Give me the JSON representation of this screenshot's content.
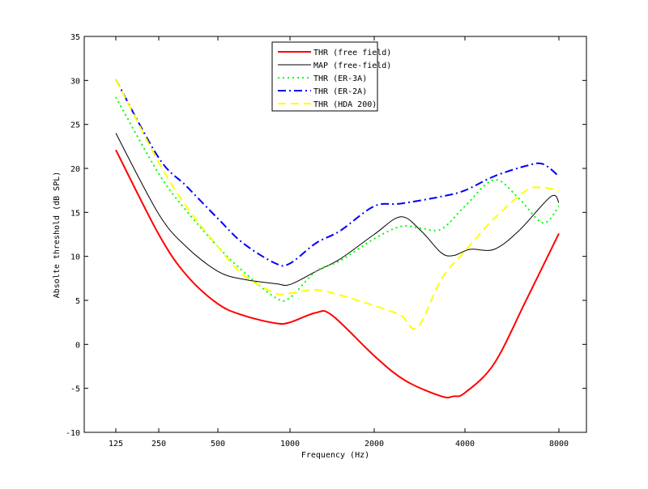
{
  "chart_data": {
    "type": "line",
    "title": "",
    "xlabel": "Frequency (Hz)",
    "ylabel": "Absolte threshold (dB SPL)",
    "xticks": [
      125,
      250,
      500,
      1000,
      2000,
      4000,
      8000
    ],
    "yticks": [
      -10,
      -5,
      0,
      5,
      10,
      15,
      20,
      25,
      30,
      35
    ],
    "ylim": [
      -10,
      35
    ],
    "grid": false,
    "legend_position": "top-center",
    "series": [
      {
        "name": "THR (free field)",
        "color": "#ff0000",
        "style": "solid",
        "width": 2,
        "x": [
          125,
          250,
          345,
          500,
          637,
          871,
          1000,
          1238,
          1414,
          2000,
          2530,
          3340,
          3670,
          4000,
          4960,
          6300,
          8000
        ],
        "y": [
          22.1,
          12.5,
          7.9,
          4.6,
          3.3,
          2.4,
          2.5,
          3.6,
          3.3,
          -1.3,
          -4.1,
          -5.9,
          -5.9,
          -5.5,
          -2.2,
          5.1,
          12.6
        ]
      },
      {
        "name": "MAP (free-field)",
        "color": "#000000",
        "style": "solid",
        "width": 1,
        "x": [
          125,
          250,
          345,
          500,
          637,
          871,
          1000,
          1238,
          1510,
          2000,
          2450,
          2860,
          3340,
          3670,
          4150,
          4960,
          5950,
          7540,
          8000
        ],
        "y": [
          24.0,
          14.8,
          11.1,
          8.3,
          7.4,
          6.9,
          6.8,
          8.3,
          9.7,
          12.5,
          14.5,
          12.9,
          10.4,
          10.1,
          10.8,
          10.8,
          12.9,
          16.8,
          16.1
        ]
      },
      {
        "name": "THR (ER-3A)",
        "color": "#00ff00",
        "style": "dotted",
        "width": 2,
        "x": [
          125,
          250,
          345,
          500,
          637,
          871,
          1000,
          1238,
          1510,
          2000,
          2450,
          2860,
          3340,
          4000,
          4960,
          5950,
          7110,
          8000
        ],
        "y": [
          28.1,
          19.4,
          15.2,
          11.1,
          8.3,
          5.3,
          5.3,
          8.3,
          9.5,
          12.0,
          13.4,
          13.2,
          13.1,
          15.7,
          18.7,
          16.6,
          13.8,
          15.7
        ]
      },
      {
        "name": "THR (ER-2A)",
        "color": "#0000ff",
        "style": "dashdot",
        "width": 2,
        "x": [
          125,
          250,
          345,
          500,
          637,
          871,
          1000,
          1238,
          1510,
          2000,
          2450,
          3340,
          4000,
          4960,
          6300,
          7110,
          8000
        ],
        "y": [
          30.1,
          21.2,
          18.0,
          14.3,
          11.5,
          9.2,
          9.2,
          11.5,
          12.9,
          15.7,
          16.0,
          16.8,
          17.5,
          19.1,
          20.3,
          20.5,
          19.1
        ]
      },
      {
        "name": "THR (HDA 200)",
        "color": "#ffff00",
        "style": "dashed",
        "width": 2,
        "x": [
          125,
          250,
          345,
          500,
          637,
          871,
          1000,
          1238,
          1510,
          2000,
          2450,
          2780,
          3340,
          4000,
          4960,
          6300,
          7110,
          8000
        ],
        "y": [
          30.1,
          20.7,
          15.7,
          11.1,
          7.9,
          5.8,
          5.8,
          6.2,
          5.6,
          4.4,
          3.3,
          1.9,
          7.4,
          10.6,
          14.3,
          17.5,
          17.8,
          17.5
        ]
      }
    ]
  }
}
